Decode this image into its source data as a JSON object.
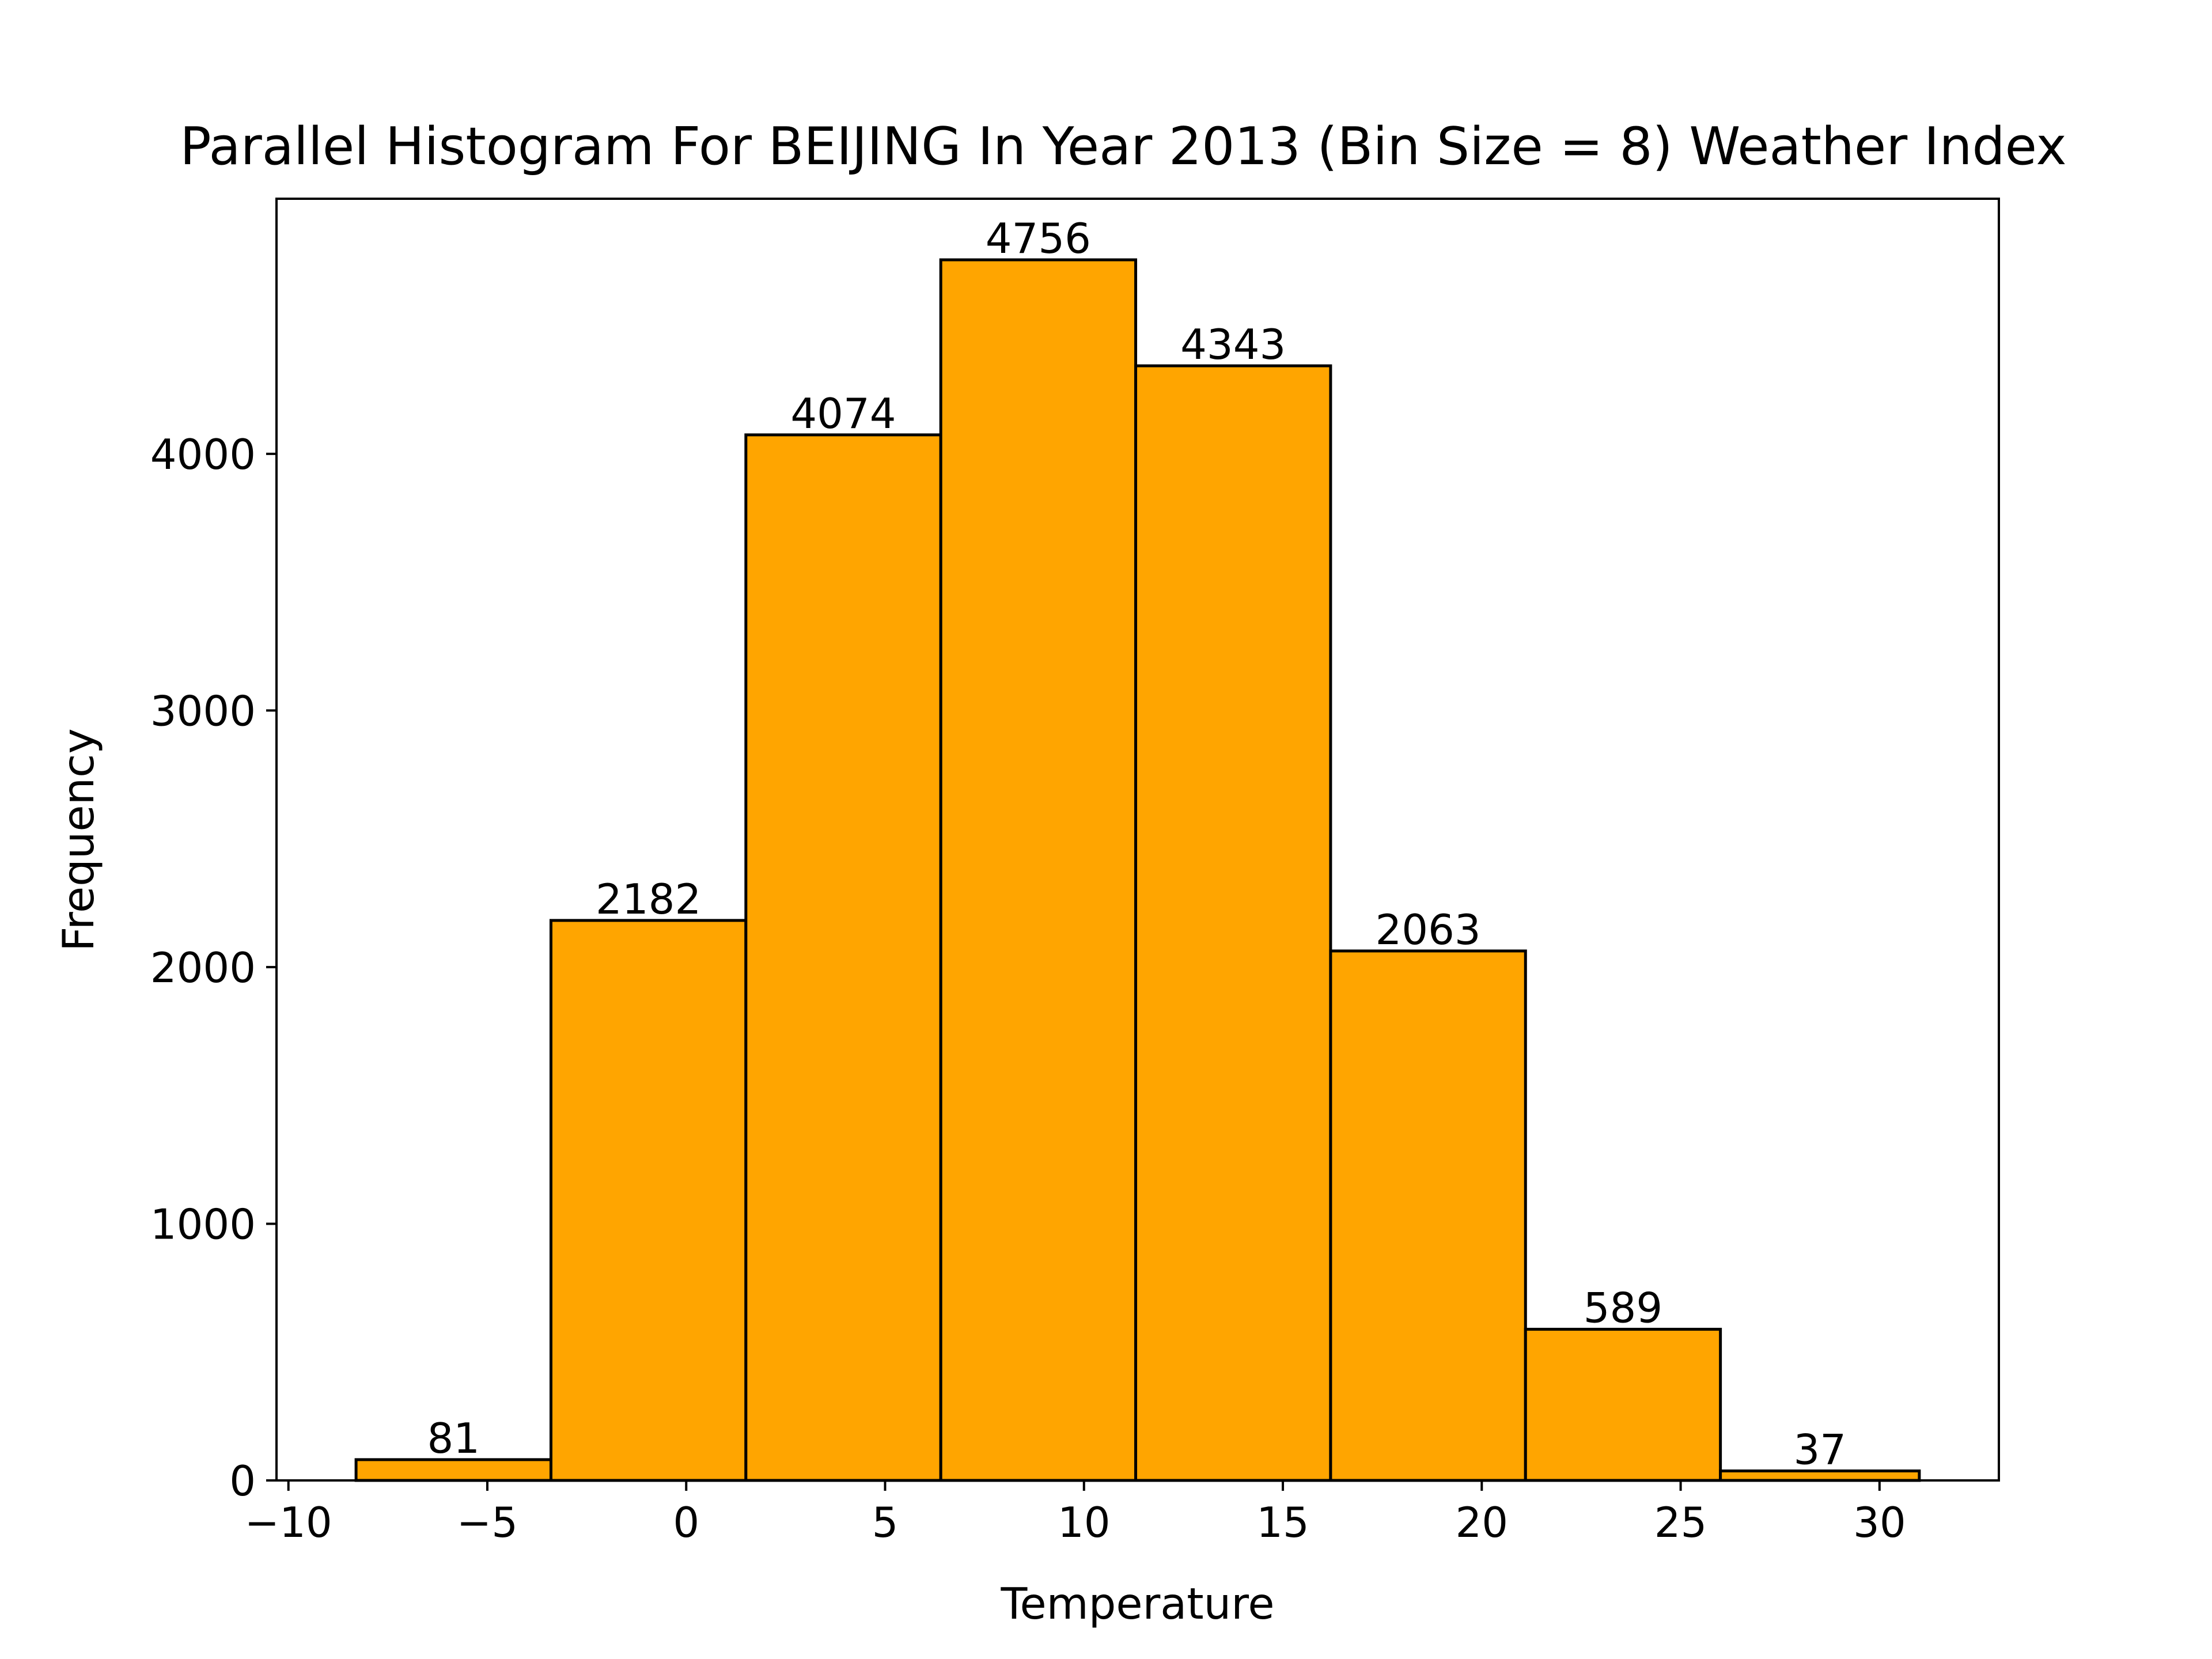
{
  "chart_data": {
    "type": "bar",
    "title": "Parallel Histogram For BEIJING In Year 2013 (Bin Size = 8) Weather Index",
    "xlabel": "Temperature",
    "ylabel": "Frequency",
    "bins": [
      {
        "start": -8.3,
        "end": -3.4,
        "value": 81
      },
      {
        "start": -3.4,
        "end": 1.5,
        "value": 2182
      },
      {
        "start": 1.5,
        "end": 6.4,
        "value": 4074
      },
      {
        "start": 6.4,
        "end": 11.3,
        "value": 4756
      },
      {
        "start": 11.3,
        "end": 16.2,
        "value": 4343
      },
      {
        "start": 16.2,
        "end": 21.1,
        "value": 2063
      },
      {
        "start": 21.1,
        "end": 26.0,
        "value": 589
      },
      {
        "start": 26.0,
        "end": 31.0,
        "value": 37
      }
    ],
    "value_labels": [
      "81",
      "2182",
      "4074",
      "4756",
      "4343",
      "2063",
      "589",
      "37"
    ],
    "xlim": [
      -10.3,
      33.0
    ],
    "ylim": [
      0,
      4994
    ],
    "xticks": [
      -10,
      -5,
      0,
      5,
      10,
      15,
      20,
      25,
      30
    ],
    "xtick_labels": [
      "−10",
      "−5",
      "0",
      "5",
      "10",
      "15",
      "20",
      "25",
      "30"
    ],
    "yticks": [
      0,
      1000,
      2000,
      3000,
      4000
    ],
    "ytick_labels": [
      "0",
      "1000",
      "2000",
      "3000",
      "4000"
    ],
    "bar_color": "#ffa500",
    "edge_color": "#000000",
    "grid": false,
    "legend": false
  }
}
